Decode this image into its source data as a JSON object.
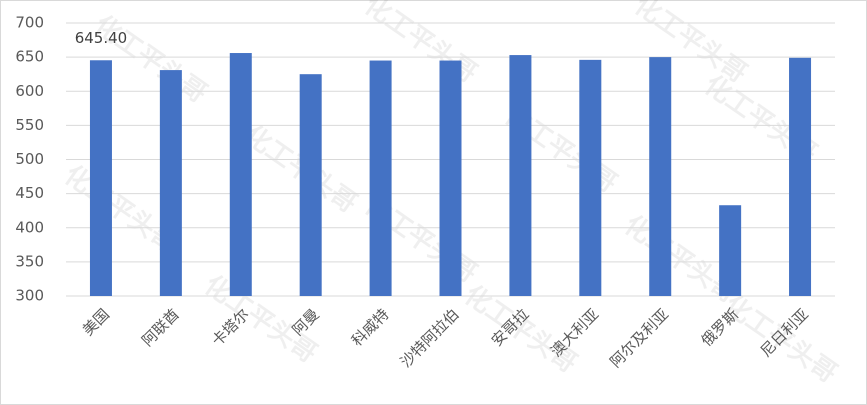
{
  "chart_data": {
    "type": "bar",
    "categories": [
      "美国",
      "阿联酋",
      "卡塔尔",
      "阿曼",
      "科威特",
      "沙特阿拉伯",
      "安哥拉",
      "澳大利亚",
      "阿尔及利亚",
      "俄罗斯",
      "尼日利亚"
    ],
    "values": [
      645.4,
      631,
      656,
      625,
      645,
      645,
      653,
      646,
      650,
      433,
      649
    ],
    "value_labels": [
      "645.40",
      null,
      null,
      null,
      null,
      null,
      null,
      null,
      null,
      null,
      null
    ],
    "color": "#4472c4",
    "ylim": [
      300,
      700
    ],
    "yticks": [
      300,
      350,
      400,
      450,
      500,
      550,
      600,
      650,
      700
    ],
    "grid": true,
    "watermark": "化工平头哥"
  }
}
